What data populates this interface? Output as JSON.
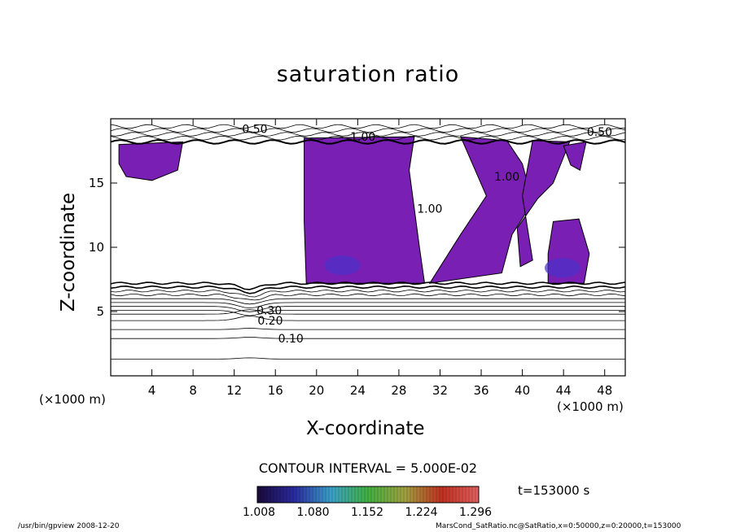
{
  "chart_data": {
    "type": "contour",
    "title": "saturation ratio",
    "xlabel": "X-coordinate",
    "ylabel": "Z-coordinate",
    "x_unit_left": "(×1000 m)",
    "x_unit_right": "(×1000 m)",
    "xlim": [
      0,
      50
    ],
    "ylim": [
      0,
      20
    ],
    "xticks": [
      4,
      8,
      12,
      16,
      20,
      24,
      28,
      32,
      36,
      40,
      44,
      48
    ],
    "yticks": [
      5,
      10,
      15
    ],
    "contour_labels": [
      {
        "text": "0.10",
        "x": 17.5,
        "z": 2.9
      },
      {
        "text": "0.20",
        "x": 15.5,
        "z": 4.3
      },
      {
        "text": "0.30",
        "x": 15.4,
        "z": 5.1
      },
      {
        "text": "1.00",
        "x": 24.5,
        "z": 18.6
      },
      {
        "text": "1.00",
        "x": 31.0,
        "z": 13.0
      },
      {
        "text": "1.00",
        "x": 38.5,
        "z": 15.5
      },
      {
        "text": "0.50",
        "x": 14.0,
        "z": 19.2
      },
      {
        "text": "0.50",
        "x": 47.5,
        "z": 19.0
      }
    ],
    "contour_levels_z": [
      1.3,
      2.9,
      3.6,
      4.3,
      4.8,
      5.1,
      5.4,
      5.7,
      6.0,
      6.3,
      6.6,
      6.9,
      7.2
    ],
    "colorbar": {
      "labels": [
        "1.008",
        "1.080",
        "1.152",
        "1.224",
        "1.296"
      ],
      "colors": [
        "#1a0a3a",
        "#2a2aa0",
        "#3aa0c8",
        "#40b040",
        "#a0a040",
        "#c03020",
        "#e06060"
      ]
    },
    "contour_interval": "CONTOUR INTERVAL = 5.000E-02",
    "time": "t=153000  s",
    "fill_color": "#7a1fb4",
    "footer_left": "/usr/bin/gpview   2008-12-20",
    "footer_right": "MarsCond_SatRatio.nc@SatRatio,x=0:50000,z=0:20000,t=153000"
  }
}
